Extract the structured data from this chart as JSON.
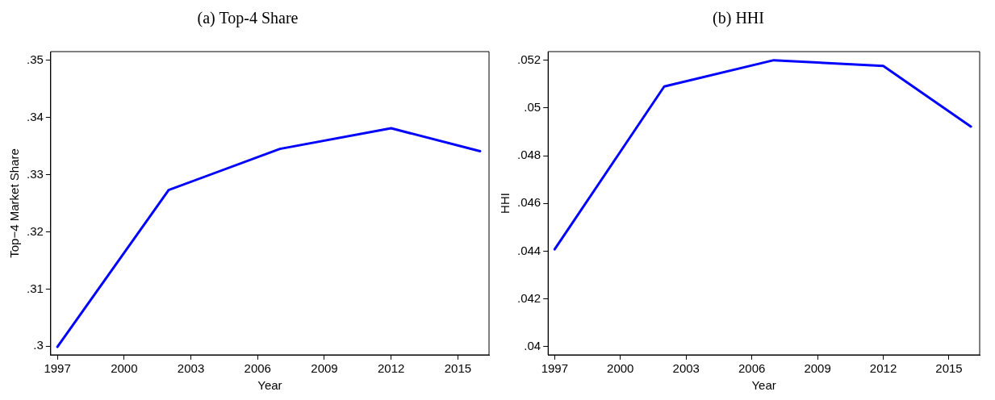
{
  "chart_data": [
    {
      "type": "line",
      "title": "(a) Top-4 Share",
      "xlabel": "Year",
      "ylabel": "Top−4 Market Share",
      "x": [
        1997,
        2002,
        2007,
        2012,
        2016
      ],
      "series": [
        {
          "color": "#0000ff",
          "values": [
            0.2999,
            0.3273,
            0.3345,
            0.3381,
            0.3341
          ]
        }
      ],
      "xlim": [
        1996.7,
        2016.4
      ],
      "xticks": [
        1997,
        2000,
        2003,
        2006,
        2009,
        2012,
        2015
      ],
      "ylim": [
        0.2985,
        0.3515
      ],
      "yticks": [
        {
          "value": 0.3,
          "label": ".3"
        },
        {
          "value": 0.31,
          "label": ".31"
        },
        {
          "value": 0.32,
          "label": ".32"
        },
        {
          "value": 0.33,
          "label": ".33"
        },
        {
          "value": 0.34,
          "label": ".34"
        },
        {
          "value": 0.35,
          "label": ".35"
        }
      ],
      "grid": false,
      "legend": false,
      "marker": "none",
      "line_style": "solid"
    },
    {
      "type": "line",
      "title": "(b) HHI",
      "xlabel": "Year",
      "ylabel": "HHI",
      "x": [
        1997,
        2002,
        2007,
        2012,
        2016
      ],
      "series": [
        {
          "color": "#0000ff",
          "values": [
            0.04408,
            0.0509,
            0.052,
            0.05176,
            0.04922
          ]
        }
      ],
      "xlim": [
        1996.7,
        2016.4
      ],
      "xticks": [
        1997,
        2000,
        2003,
        2006,
        2009,
        2012,
        2015
      ],
      "ylim": [
        0.03966,
        0.05236
      ],
      "yticks": [
        {
          "value": 0.04,
          "label": ".04"
        },
        {
          "value": 0.042,
          "label": ".042"
        },
        {
          "value": 0.044,
          "label": ".044"
        },
        {
          "value": 0.046,
          "label": ".046"
        },
        {
          "value": 0.048,
          "label": ".048"
        },
        {
          "value": 0.05,
          "label": ".05"
        },
        {
          "value": 0.052,
          "label": ".052"
        }
      ],
      "grid": false,
      "legend": false,
      "marker": "none",
      "line_style": "solid"
    }
  ]
}
